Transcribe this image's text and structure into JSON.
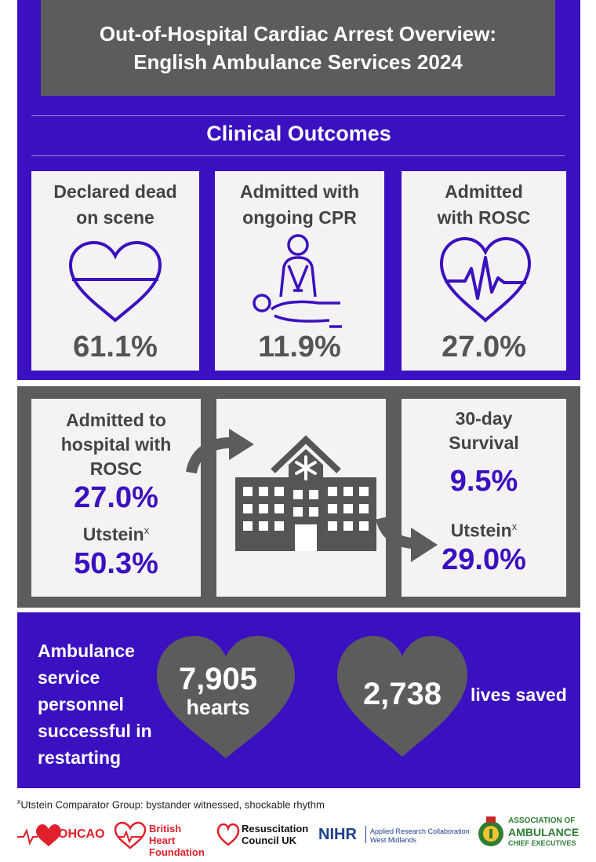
{
  "title": {
    "line1": "Out-of-Hospital Cardiac Arrest Overview:",
    "line2": "English Ambulance Services 2024"
  },
  "section_title": "Clinical Outcomes",
  "outcomes": [
    {
      "label_line1": "Declared dead",
      "label_line2": "on scene",
      "value": "61.1%",
      "icon": "heart-half-icon"
    },
    {
      "label_line1": "Admitted with",
      "label_line2": "ongoing CPR",
      "value": "11.9%",
      "icon": "cpr-icon"
    },
    {
      "label_line1": "Admitted",
      "label_line2": "with ROSC",
      "value": "27.0%",
      "icon": "heart-pulse-icon"
    }
  ],
  "hospital": {
    "left_label_line1": "Admitted to",
    "left_label_line2": "hospital with",
    "left_label_line3": "ROSC",
    "left_value": "27.0%",
    "left_utstein_label": "Utstein",
    "left_utstein_value": "50.3%",
    "right_label_line1": "30-day",
    "right_label_line2": "Survival",
    "right_value": "9.5%",
    "right_utstein_label": "Utstein",
    "right_utstein_value": "29.0%",
    "superscript": "x"
  },
  "impact": {
    "personnel_line1": "Ambulance",
    "personnel_line2": "service",
    "personnel_line3": "personnel",
    "personnel_line4": "successful in",
    "personnel_line5": "restarting",
    "hearts_value": "7,905",
    "hearts_label": "hearts",
    "lives_value": "2,738",
    "lives_label": "lives saved"
  },
  "footnote": {
    "marker": "x",
    "text": "Utstein Comparator Group: bystander witnessed, shockable rhythm"
  },
  "logos": {
    "ohcao": "OHCAO",
    "bhf_line1": "British Heart",
    "bhf_line2": "Foundation",
    "rc_line1": "Resuscitation",
    "rc_line2": "Council UK",
    "nihr": "NIHR",
    "nihr_line1": "Applied Research Collaboration",
    "nihr_line2": "West Midlands",
    "aace_line1": "ASSOCIATION OF",
    "aace_line2": "AMBULANCE",
    "aace_line3": "CHIEF EXECUTIVES"
  },
  "colors": {
    "blue": "#3a10c0",
    "grey": "#5c5c5c",
    "card": "#f4f2f2",
    "red": "#e0202a",
    "nihr_blue": "#1d3f8c",
    "aace_green": "#2e7d32"
  }
}
